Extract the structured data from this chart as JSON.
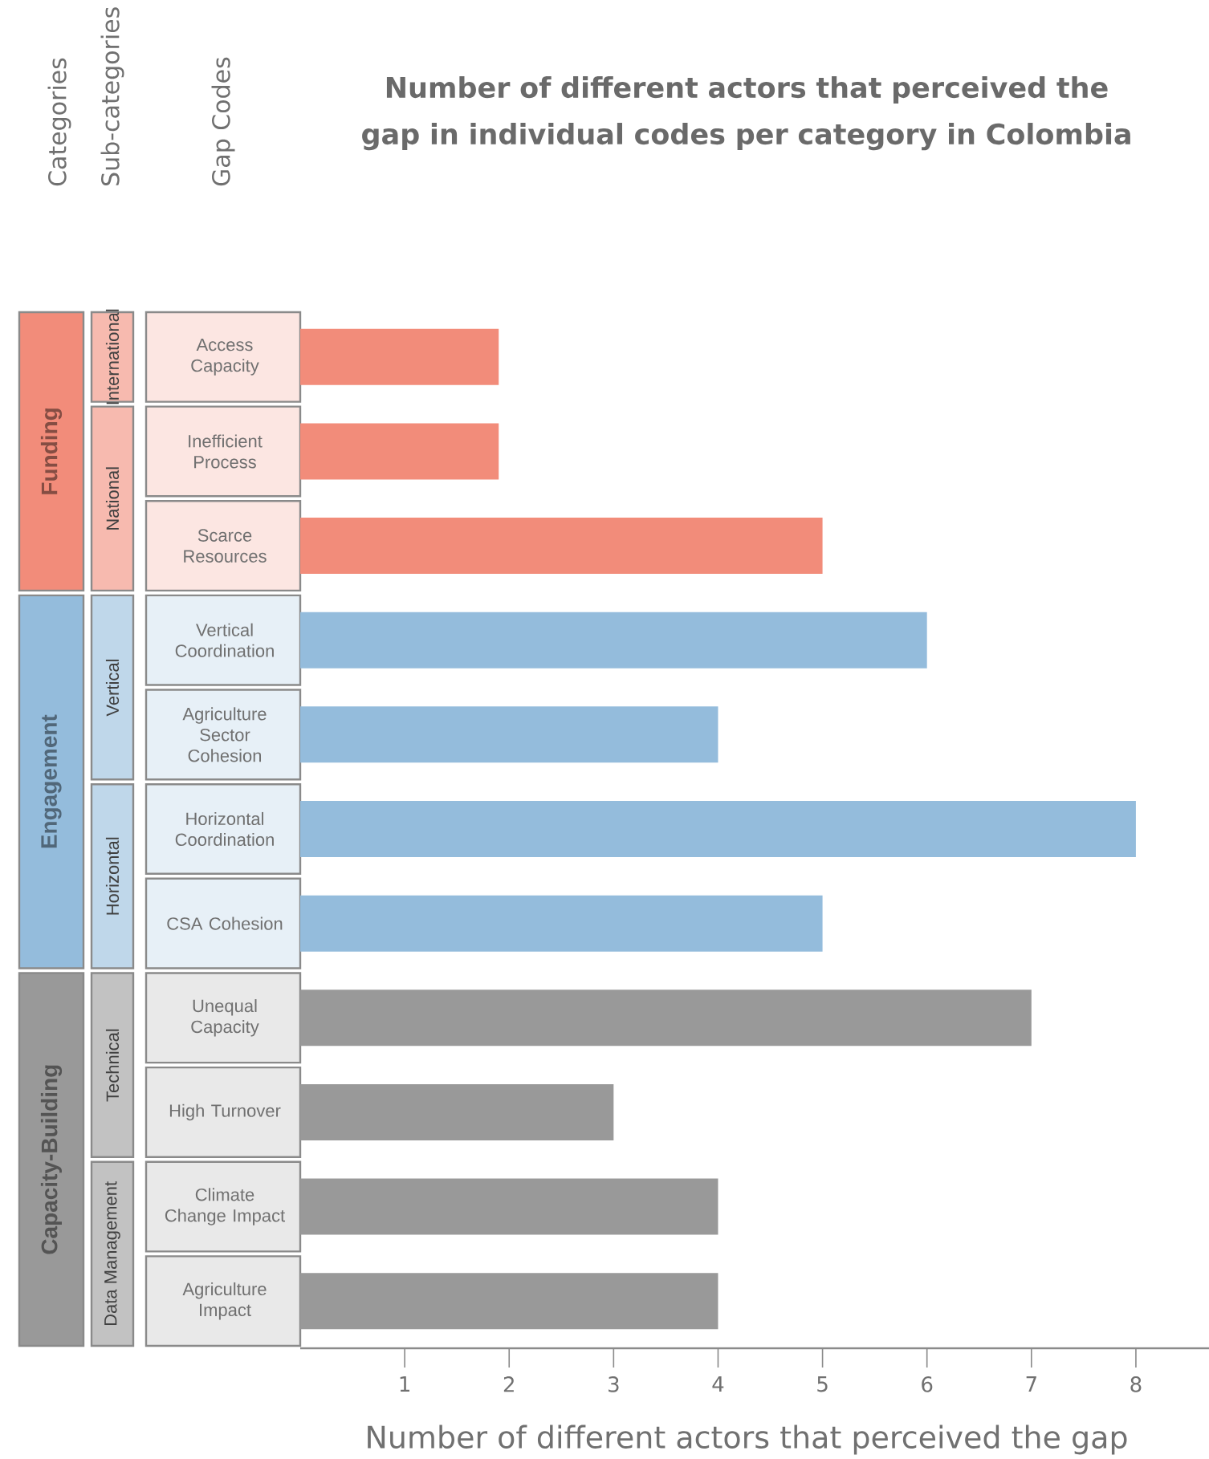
{
  "chart_data": {
    "type": "bar",
    "orientation": "horizontal",
    "title": "Number of different actors that perceived the gap in individual codes per category in Colombia",
    "xlabel": "Number of different actors that perceived the gap",
    "categories": [
      "Access Capacity",
      "Inefficient Process",
      "Scarce Resources",
      "Vertical Coordination",
      "Agriculture Sector Cohesion",
      "Horizontal Coordination",
      "CSA Cohesion",
      "Unequal Capacity",
      "High Turnover",
      "Climate Change Impact",
      "Agriculture Impact"
    ],
    "values": [
      1.9,
      1.9,
      5,
      6,
      4,
      8,
      5,
      7,
      3,
      4,
      4
    ],
    "colors": [
      "#f28c7a",
      "#f28c7a",
      "#f28c7a",
      "#94bcdc",
      "#94bcdc",
      "#94bcdc",
      "#94bcdc",
      "#999999",
      "#999999",
      "#999999",
      "#999999"
    ],
    "xlim": [
      0,
      8.7
    ],
    "xticks": [
      1,
      2,
      3,
      4,
      5,
      6,
      7,
      8
    ],
    "annotations": [
      "Categories",
      "Sub-categories",
      "Gap Codes",
      "Funding",
      "Engagement",
      "Capacity-Building",
      "International",
      "National",
      "Vertical",
      "Horizontal",
      "Technical",
      "Data Management"
    ]
  }
}
